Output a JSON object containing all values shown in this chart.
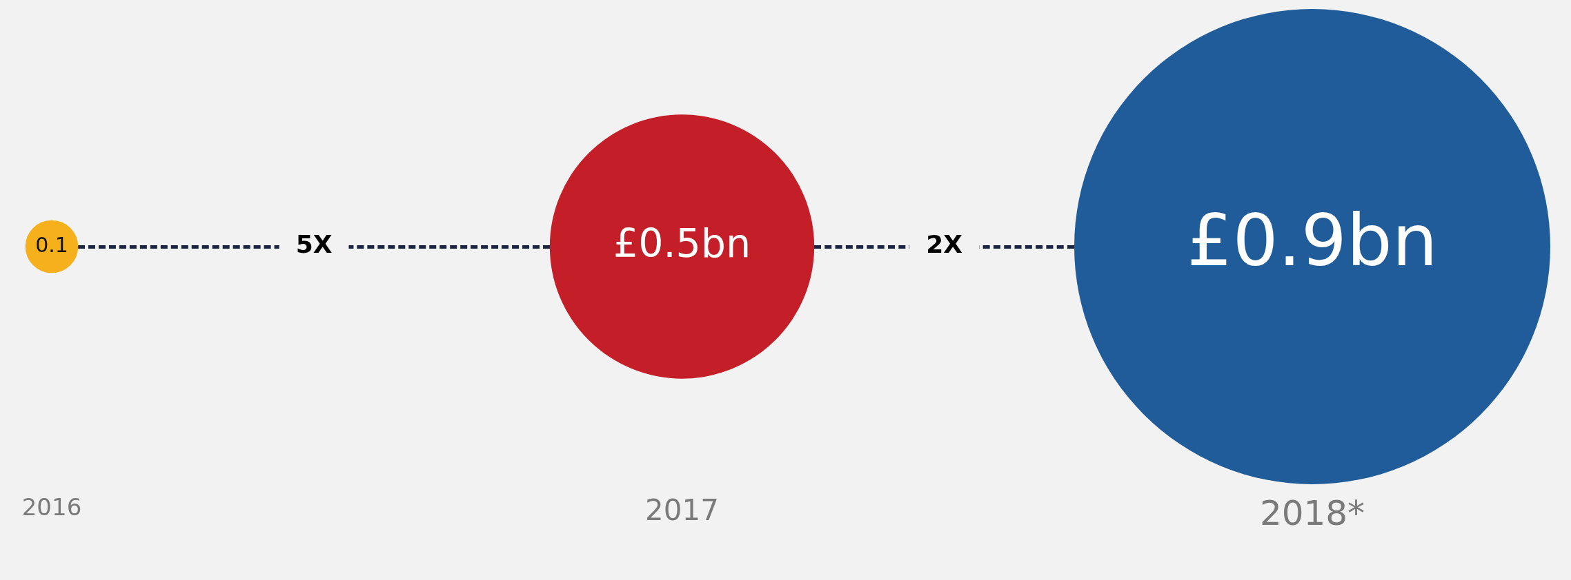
{
  "chart_data": {
    "type": "other",
    "categories": [
      "2016",
      "2017",
      "2018*"
    ],
    "values": [
      0.1,
      0.5,
      0.9
    ],
    "colors": [
      "#f5b01c",
      "#c41e28",
      "#1f5c99"
    ],
    "value_labels": [
      "0.1",
      "£0.5bn",
      "£0.9bn"
    ],
    "annotations": [
      "5X",
      "2X"
    ],
    "legend": false
  }
}
